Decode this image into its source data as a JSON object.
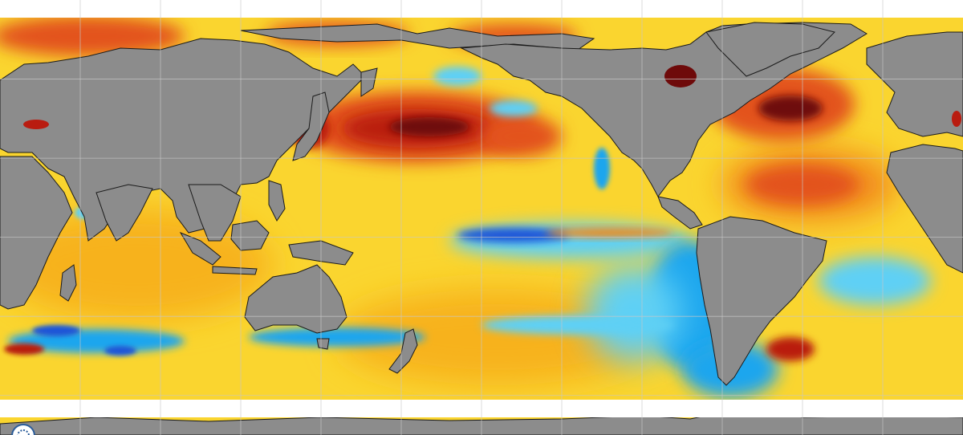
{
  "map": {
    "projection": "equirectangular",
    "theme": "sea surface temperature anomaly",
    "colors": {
      "land": "#8c8c8c",
      "sea_ice_no_data": "#ffffff",
      "coastline": "#1a1a1a",
      "gridline": "#c8c8c8",
      "very_warm": "#6e0a0a",
      "warm_dark": "#b91c10",
      "warm": "#e3521c",
      "warm_light": "#f28a1e",
      "mild_warm": "#f7b21e",
      "slight_warm": "#fad52f",
      "near_zero": "#e8e8e8",
      "slight_cool": "#5fd0f5",
      "cool": "#1aa6ee",
      "cold": "#1f55d8"
    },
    "features": {
      "warm_anomalies": [
        "north-pacific-hotspot",
        "north-atlantic-hotspot",
        "hudson-bay-hotspot",
        "sea-of-japan-hotspot",
        "black-sea-hotspot",
        "arctic-ocean-warmth",
        "south-atlantic-warm-patch"
      ],
      "cool_anomalies": [
        "equatorial-pacific-la-nina-tongue",
        "peru-coast-cool-region",
        "patagonia-cool-region",
        "southern-ocean-cool-band",
        "california-coast-cool-strip",
        "bering-sea-cool-patch"
      ]
    },
    "logo": {
      "icon": "noaa-emblem-icon"
    }
  }
}
